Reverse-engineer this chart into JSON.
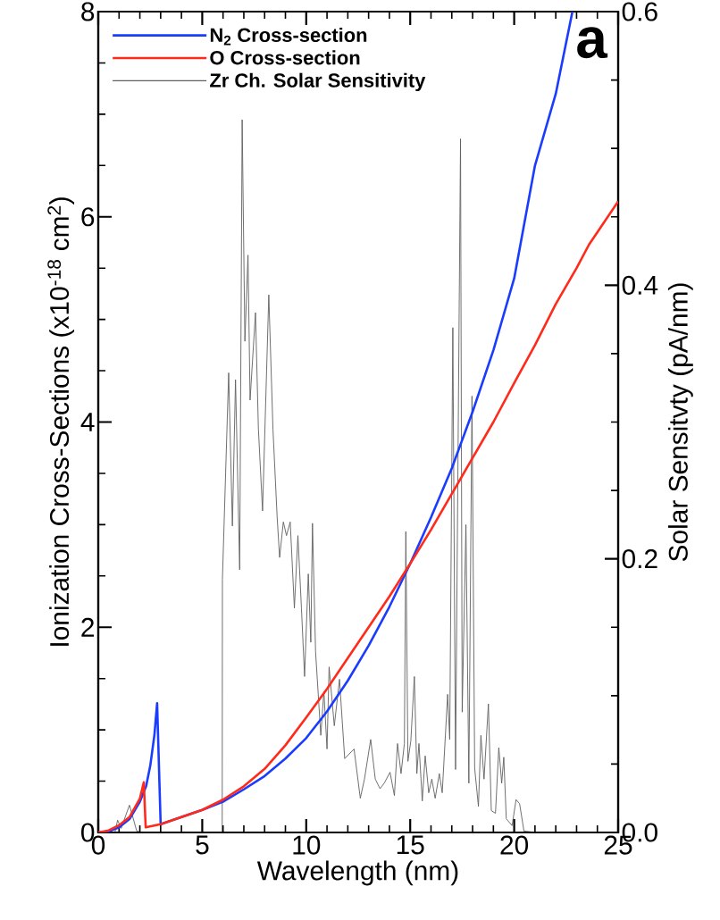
{
  "chart_data": {
    "type": "line",
    "xlabel": "Wavelength (nm)",
    "ylabel": "Ionization Cross-Sections (x10$^{-18}$ cm$^{2}$)",
    "y2label": "Solar Sensitvty (pA/nm)",
    "annotations": [
      "a"
    ],
    "xlim": [
      0,
      25
    ],
    "ylim": [
      0,
      8
    ],
    "y2lim": [
      0,
      0.6
    ],
    "xticks": [
      0,
      5,
      10,
      15,
      20,
      25
    ],
    "yticks": [
      0,
      2,
      4,
      6,
      8
    ],
    "y2ticks": [
      {
        "value": 0,
        "label": "0.0"
      },
      {
        "value": 0.2,
        "label": "0.2"
      },
      {
        "value": 0.4,
        "label": "0.4"
      },
      {
        "value": 0.6,
        "label": "0.6"
      }
    ],
    "legend": "top left",
    "series": [
      {
        "name": "N$_{2}$ Cross-section",
        "color": "#1a3cff",
        "x": [
          0,
          0.5,
          1,
          1.5,
          2,
          2.3,
          2.5,
          2.7,
          2.83,
          3.0,
          4,
          5,
          6,
          7,
          8,
          9,
          10,
          11,
          12,
          13,
          14,
          15,
          16,
          17,
          18,
          19,
          20,
          21,
          22,
          22.8
        ],
        "values": [
          0,
          0.01,
          0.05,
          0.13,
          0.3,
          0.45,
          0.65,
          0.95,
          1.26,
          0.08,
          0.15,
          0.22,
          0.3,
          0.42,
          0.55,
          0.72,
          0.92,
          1.18,
          1.48,
          1.82,
          2.2,
          2.62,
          3.07,
          3.55,
          4.1,
          4.7,
          5.4,
          6.5,
          7.2,
          8.0
        ]
      },
      {
        "name": "O Cross-section",
        "color": "#ff2a1a",
        "x": [
          0,
          0.5,
          1,
          1.5,
          2,
          2.19,
          2.28,
          3,
          4,
          5,
          6,
          7,
          8,
          9,
          10,
          11,
          12,
          13,
          14,
          15,
          16,
          17,
          18,
          19,
          20,
          21,
          22,
          23,
          23.6,
          24,
          25
        ],
        "values": [
          0,
          0.02,
          0.07,
          0.15,
          0.33,
          0.49,
          0.05,
          0.08,
          0.15,
          0.22,
          0.32,
          0.45,
          0.62,
          0.85,
          1.12,
          1.4,
          1.7,
          2.0,
          2.3,
          2.62,
          2.95,
          3.3,
          3.65,
          4.0,
          4.38,
          4.75,
          5.15,
          5.5,
          5.73,
          5.85,
          6.15
        ]
      },
      {
        "name": "Zr Ch. Solar Sensitivity",
        "color": "#606060",
        "axis": "y2",
        "x": [
          0,
          0.8,
          0.93,
          1.1,
          1.5,
          1.85,
          2.1,
          5.96,
          5.97,
          6.27,
          6.45,
          6.6,
          6.8,
          6.92,
          7.05,
          7.2,
          7.3,
          7.56,
          7.7,
          7.9,
          8.2,
          8.4,
          8.6,
          8.72,
          8.9,
          9.05,
          9.23,
          9.43,
          9.6,
          9.77,
          9.92,
          10.1,
          10.22,
          10.3,
          10.45,
          10.7,
          10.85,
          11.0,
          11.1,
          11.35,
          11.6,
          11.85,
          12.3,
          12.6,
          12.8,
          13.1,
          13.32,
          13.55,
          13.75,
          14.03,
          14.24,
          14.39,
          14.56,
          14.72,
          14.79,
          14.89,
          15.03,
          15.2,
          15.32,
          15.42,
          15.58,
          15.72,
          15.89,
          16.04,
          16.2,
          16.4,
          16.54,
          16.67,
          16.8,
          16.9,
          17.05,
          17.18,
          17.42,
          17.5,
          17.68,
          17.82,
          17.97,
          18.1,
          18.28,
          18.4,
          18.55,
          18.76,
          18.9,
          19.1,
          19.26,
          19.4,
          19.5,
          19.62,
          19.9,
          20.09,
          20.26,
          20.47,
          21.05
        ],
        "values": [
          0,
          0,
          0.009,
          0.003,
          0.02,
          0.001,
          0,
          0,
          0.185,
          0.336,
          0.224,
          0.331,
          0.192,
          0.521,
          0.359,
          0.422,
          0.316,
          0.38,
          0.295,
          0.235,
          0.393,
          0.295,
          0.231,
          0.201,
          0.227,
          0.217,
          0.227,
          0.164,
          0.217,
          0.164,
          0.114,
          0.189,
          0.139,
          0.226,
          0.132,
          0.071,
          0.103,
          0.061,
          0.121,
          0.078,
          0.112,
          0.054,
          0.061,
          0.025,
          0.039,
          0.068,
          0.039,
          0.032,
          0.036,
          0.044,
          0.027,
          0.065,
          0.043,
          0.065,
          0.22,
          0.052,
          0.067,
          0.114,
          0.043,
          0.065,
          0.023,
          0.056,
          0.029,
          0.039,
          0.025,
          0.043,
          0.029,
          0.065,
          0.101,
          0.068,
          0.369,
          0.046,
          0.507,
          0.088,
          0.225,
          0.036,
          0.319,
          0.047,
          0.019,
          0.071,
          0.039,
          0.094,
          0.016,
          0.014,
          0.062,
          0.036,
          0.055,
          0.01,
          0.005,
          0.024,
          0.021,
          0.001,
          0
        ]
      }
    ]
  }
}
